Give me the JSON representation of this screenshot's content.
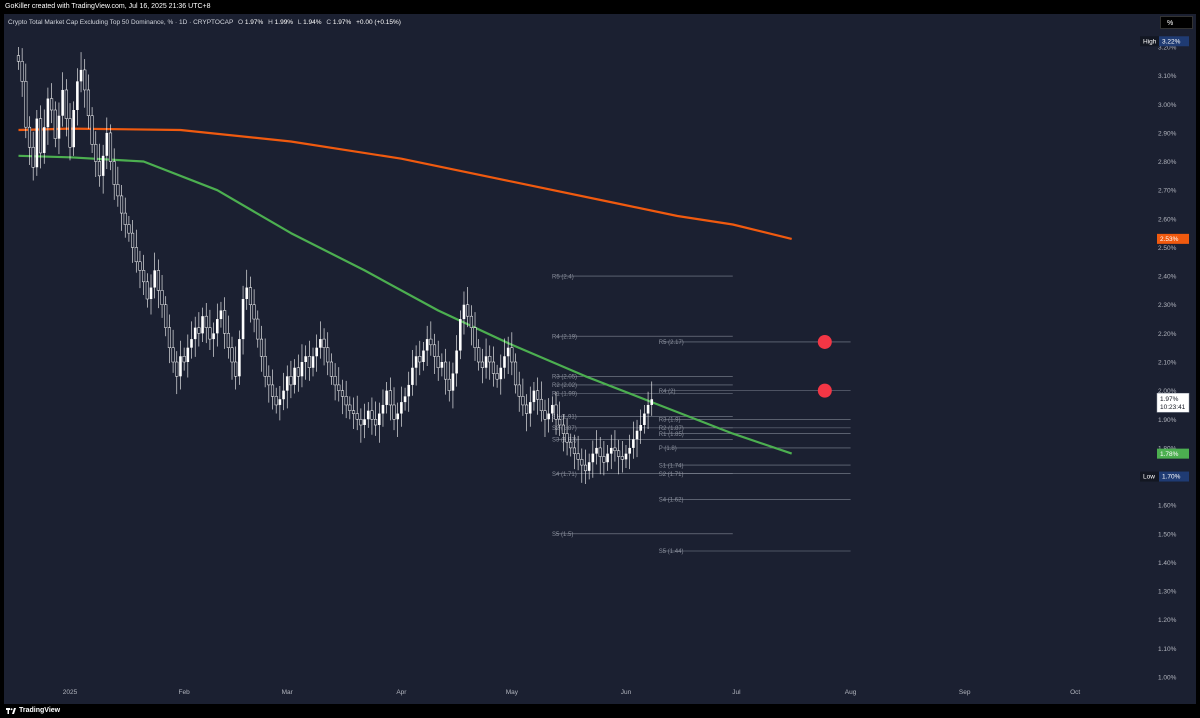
{
  "header": {
    "credit": "GoKiller created with TradingView.com, Jul 16, 2025 21:36 UTC+8"
  },
  "legend": {
    "title": "Crypto Total Market Cap Excluding Top 50 Dominance, % · 1D · CRYPTOCAP",
    "o_label": "O",
    "o_value": "1.97%",
    "h_label": "H",
    "h_value": "1.99%",
    "l_label": "L",
    "l_value": "1.94%",
    "c_label": "C",
    "c_value": "1.97%",
    "change": "+0.00 (+0.15%)"
  },
  "footer": {
    "brand": "TradingView"
  },
  "scale_button": "%",
  "colors": {
    "background": "#1b2031",
    "candle": "#ffffff",
    "ma_orange": "#f05a0f",
    "ma_green": "#4caf50",
    "pivot_line": "#9aa0ad",
    "pivot_label": "#8a8f9c",
    "marker": "#f23645",
    "high_badge": "#1f3b73",
    "low_badge": "#1f3b73"
  },
  "chart_data": {
    "type": "candlestick",
    "title": "Crypto Total Market Cap Excluding Top 50 Dominance, %",
    "x_axis": {
      "labels": [
        "2025",
        "Feb",
        "Mar",
        "Apr",
        "May",
        "Jun",
        "Jul",
        "Aug",
        "Sep",
        "Oct"
      ],
      "days": [
        0,
        31,
        59,
        90,
        120,
        151,
        181,
        212,
        243,
        273
      ]
    },
    "y_axis": {
      "unit": "%",
      "range": [
        0.97,
        3.25
      ],
      "ticks": [
        "3.20%",
        "3.10%",
        "3.00%",
        "2.90%",
        "2.80%",
        "2.70%",
        "2.60%",
        "2.50%",
        "2.40%",
        "2.30%",
        "2.20%",
        "2.10%",
        "2.00%",
        "1.90%",
        "1.80%",
        "1.70%",
        "1.60%",
        "1.50%",
        "1.40%",
        "1.30%",
        "1.20%",
        "1.10%",
        "1.00%"
      ],
      "tick_values": [
        3.2,
        3.1,
        3.0,
        2.9,
        2.8,
        2.7,
        2.6,
        2.5,
        2.4,
        2.3,
        2.2,
        2.1,
        2.0,
        1.9,
        1.8,
        1.7,
        1.6,
        1.5,
        1.4,
        1.3,
        1.2,
        1.1,
        1.0
      ]
    },
    "badges": [
      {
        "label": "High",
        "text": "3.22%",
        "value": 3.22
      },
      {
        "label": "",
        "text": "2.53%",
        "value": 2.53,
        "color": "#f05a0f"
      },
      {
        "label": "",
        "text": "1.97%",
        "sub": "10:23:41",
        "value": 1.97,
        "color": "#ffffff"
      },
      {
        "label": "",
        "text": "1.78%",
        "value": 1.78,
        "color": "#4caf50"
      },
      {
        "label": "Low",
        "text": "1.70%",
        "value": 1.7
      }
    ],
    "close_series": {
      "start_day": -14,
      "values": [
        3.15,
        3.08,
        2.92,
        2.85,
        2.78,
        2.95,
        2.83,
        2.92,
        3.02,
        2.98,
        2.88,
        2.96,
        3.05,
        2.95,
        2.85,
        2.98,
        3.08,
        3.12,
        3.05,
        2.96,
        2.86,
        2.8,
        2.75,
        2.82,
        2.9,
        2.8,
        2.72,
        2.68,
        2.62,
        2.58,
        2.55,
        2.5,
        2.45,
        2.42,
        2.38,
        2.32,
        2.36,
        2.42,
        2.35,
        2.3,
        2.22,
        2.15,
        2.1,
        2.05,
        2.12,
        2.1,
        2.15,
        2.18,
        2.22,
        2.2,
        2.26,
        2.22,
        2.18,
        2.2,
        2.25,
        2.28,
        2.2,
        2.15,
        2.1,
        2.05,
        2.18,
        2.32,
        2.36,
        2.3,
        2.25,
        2.18,
        2.12,
        2.05,
        2.02,
        1.98,
        1.95,
        1.97,
        2.0,
        2.05,
        2.02,
        2.08,
        2.05,
        2.1,
        2.12,
        2.08,
        2.12,
        2.15,
        2.18,
        2.15,
        2.1,
        2.05,
        2.02,
        2.0,
        1.98,
        1.95,
        1.93,
        1.92,
        1.9,
        1.88,
        1.9,
        1.93,
        1.9,
        1.88,
        1.92,
        1.95,
        2.0,
        1.95,
        1.9,
        1.92,
        1.96,
        1.98,
        2.02,
        2.08,
        2.12,
        2.1,
        2.14,
        2.18,
        2.16,
        2.12,
        2.08,
        2.1,
        2.04,
        2.0,
        2.06,
        2.14,
        2.25,
        2.3,
        2.26,
        2.22,
        2.15,
        2.1,
        2.08,
        2.12,
        2.1,
        2.06,
        2.04,
        2.08,
        2.12,
        2.15,
        2.1,
        2.02,
        1.98,
        1.95,
        1.92,
        1.96,
        2.0,
        1.97,
        1.93,
        1.9,
        1.92,
        1.95,
        1.9,
        1.88,
        1.85,
        1.82,
        1.8,
        1.78,
        1.76,
        1.74,
        1.72,
        1.75,
        1.78,
        1.8,
        1.77,
        1.75,
        1.78,
        1.8,
        1.79,
        1.77,
        1.76,
        1.78,
        1.8,
        1.83,
        1.86,
        1.88,
        1.92,
        1.95,
        1.97
      ]
    },
    "moving_averages": [
      {
        "color": "#f05a0f",
        "days": [
          -14,
          0,
          30,
          60,
          90,
          120,
          150,
          165,
          180,
          196
        ],
        "values": [
          2.91,
          2.915,
          2.91,
          2.87,
          2.81,
          2.73,
          2.65,
          2.61,
          2.58,
          2.53
        ]
      },
      {
        "color": "#4caf50",
        "days": [
          -14,
          0,
          20,
          40,
          60,
          80,
          100,
          120,
          140,
          160,
          180,
          196
        ],
        "values": [
          2.82,
          2.815,
          2.8,
          2.7,
          2.55,
          2.42,
          2.28,
          2.16,
          2.05,
          1.95,
          1.85,
          1.78
        ]
      }
    ],
    "pivots_set1": {
      "day_start": 132,
      "day_end": 180,
      "levels": [
        {
          "label": "R5 (2.4)",
          "value": 2.4
        },
        {
          "label": "R4 (2.19)",
          "value": 2.19
        },
        {
          "label": "R3 (2.05)",
          "value": 2.05
        },
        {
          "label": "R2 (2.02)",
          "value": 2.02
        },
        {
          "label": "R1 (1.99)",
          "value": 1.99
        },
        {
          "label": "S1 (1.91)",
          "value": 1.91
        },
        {
          "label": "S2 (1.87)",
          "value": 1.87
        },
        {
          "label": "S3 (1.83)",
          "value": 1.83
        },
        {
          "label": "S4 (1.71)",
          "value": 1.71
        },
        {
          "label": "S5 (1.5)",
          "value": 1.5
        }
      ]
    },
    "pivots_set2": {
      "day_start": 161,
      "day_end": 212,
      "levels": [
        {
          "label": "R5 (2.17)",
          "value": 2.17
        },
        {
          "label": "R4 (2)",
          "value": 2.0
        },
        {
          "label": "R3 (1.9)",
          "value": 1.9
        },
        {
          "label": "R2 (1.87)",
          "value": 1.87
        },
        {
          "label": "R1 (1.85)",
          "value": 1.85
        },
        {
          "label": "P (1.8)",
          "value": 1.8
        },
        {
          "label": "S1 (1.74)",
          "value": 1.74
        },
        {
          "label": "S2 (1.71)",
          "value": 1.71
        },
        {
          "label": "S4 (1.62)",
          "value": 1.62
        },
        {
          "label": "S5 (1.44)",
          "value": 1.44
        }
      ]
    },
    "markers": [
      {
        "day": 205,
        "value": 2.17,
        "color": "#f23645"
      },
      {
        "day": 205,
        "value": 2.0,
        "color": "#f23645"
      }
    ]
  }
}
